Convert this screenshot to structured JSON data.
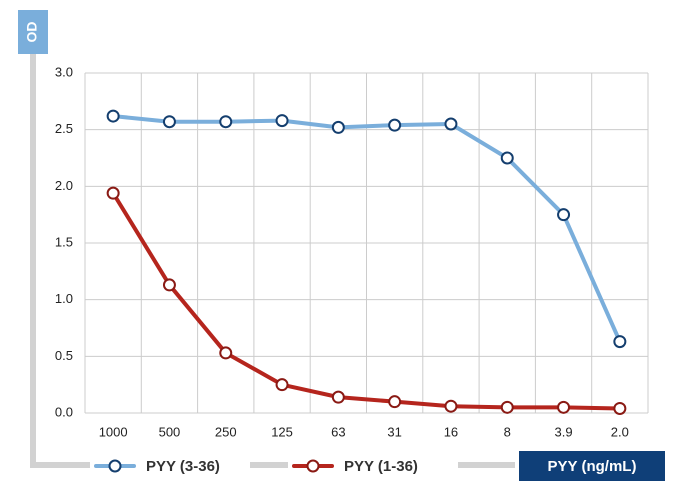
{
  "chart_data": {
    "type": "line",
    "title": "",
    "ylabel": "OD",
    "xlabel": "PYY (ng/mL)",
    "categories": [
      "1000",
      "500",
      "250",
      "125",
      "63",
      "31",
      "16",
      "8",
      "3.9",
      "2.0"
    ],
    "ylim": [
      0,
      3
    ],
    "yticks": [
      "0.0",
      "0.5",
      "1.0",
      "1.5",
      "2.0",
      "2.5",
      "3.0"
    ],
    "grid": true,
    "legend_position": "bottom",
    "series": [
      {
        "name": "PYY (3-36)",
        "color": "#7aaedb",
        "values": [
          2.62,
          2.57,
          2.57,
          2.58,
          2.52,
          2.54,
          2.55,
          2.25,
          1.75,
          0.63
        ]
      },
      {
        "name": "PYY (1-36)",
        "color": "#b5251d",
        "values": [
          1.94,
          1.13,
          0.53,
          0.25,
          0.14,
          0.1,
          0.06,
          0.05,
          0.05,
          0.04
        ]
      }
    ],
    "colors": {
      "grid": "#cccccc",
      "frame": "#d2d2d2",
      "ylabel_box": "#7aaedb",
      "xtitle_box": "#0f3f78",
      "marker_fill": "#ffffff"
    }
  }
}
